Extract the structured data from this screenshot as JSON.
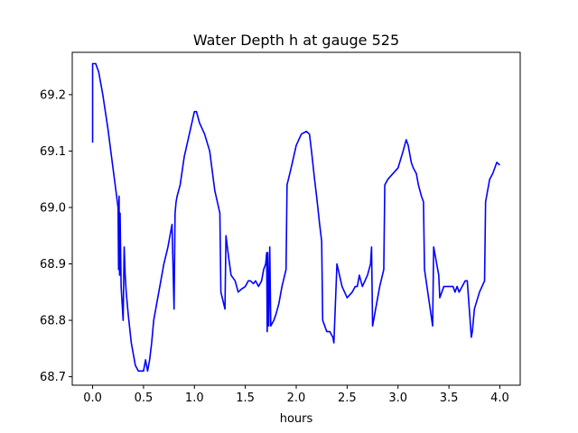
{
  "chart_data": {
    "type": "line",
    "title": "Water Depth h at gauge 525",
    "xlabel": "hours",
    "ylabel": "",
    "xlim": [
      -0.2,
      4.2
    ],
    "ylim": [
      68.685,
      69.275
    ],
    "xticks": [
      0.0,
      0.5,
      1.0,
      1.5,
      2.0,
      2.5,
      3.0,
      3.5,
      4.0
    ],
    "xtick_labels": [
      "0.0",
      "0.5",
      "1.0",
      "1.5",
      "2.0",
      "2.5",
      "3.0",
      "3.5",
      "4.0"
    ],
    "yticks": [
      68.7,
      68.8,
      68.9,
      69.0,
      69.1,
      69.2
    ],
    "ytick_labels": [
      "68.7",
      "68.8",
      "68.9",
      "69.0",
      "69.1",
      "69.2"
    ],
    "grid": false,
    "legend": "none",
    "series": [
      {
        "color": "#0000ff",
        "x": [
          0.0,
          0.0,
          0.03,
          0.06,
          0.1,
          0.15,
          0.2,
          0.25,
          0.255,
          0.26,
          0.265,
          0.27,
          0.28,
          0.3,
          0.31,
          0.32,
          0.33,
          0.35,
          0.38,
          0.4,
          0.42,
          0.45,
          0.48,
          0.5,
          0.52,
          0.54,
          0.55,
          0.56,
          0.58,
          0.6,
          0.63,
          0.66,
          0.7,
          0.74,
          0.78,
          0.8,
          0.81,
          0.815,
          0.82,
          0.83,
          0.86,
          0.9,
          0.95,
          1.0,
          1.02,
          1.05,
          1.1,
          1.15,
          1.2,
          1.25,
          1.26,
          1.3,
          1.31,
          1.33,
          1.36,
          1.4,
          1.43,
          1.46,
          1.5,
          1.53,
          1.55,
          1.58,
          1.6,
          1.63,
          1.66,
          1.68,
          1.7,
          1.71,
          1.715,
          1.72,
          1.73,
          1.74,
          1.75,
          1.78,
          1.8,
          1.83,
          1.86,
          1.9,
          1.91,
          1.95,
          2.0,
          2.05,
          2.1,
          2.13,
          2.15,
          2.18,
          2.2,
          2.23,
          2.25,
          2.26,
          2.3,
          2.33,
          2.36,
          2.37,
          2.4,
          2.45,
          2.5,
          2.55,
          2.58,
          2.6,
          2.62,
          2.65,
          2.7,
          2.73,
          2.74,
          2.75,
          2.78,
          2.82,
          2.86,
          2.87,
          2.9,
          2.95,
          3.0,
          3.05,
          3.08,
          3.1,
          3.13,
          3.15,
          3.18,
          3.2,
          3.23,
          3.25,
          3.26,
          3.3,
          3.34,
          3.35,
          3.36,
          3.38,
          3.4,
          3.41,
          3.45,
          3.5,
          3.54,
          3.56,
          3.58,
          3.6,
          3.63,
          3.66,
          3.68,
          3.72,
          3.73,
          3.75,
          3.8,
          3.85,
          3.86,
          3.88,
          3.9,
          3.93,
          3.95,
          3.97,
          4.0
        ],
        "y": [
          69.115,
          69.255,
          69.255,
          69.24,
          69.2,
          69.14,
          69.07,
          69.0,
          68.89,
          69.02,
          68.88,
          68.99,
          68.86,
          68.8,
          68.93,
          68.88,
          68.85,
          68.81,
          68.76,
          68.74,
          68.72,
          68.71,
          68.71,
          68.71,
          68.73,
          68.71,
          68.72,
          68.73,
          68.76,
          68.8,
          68.83,
          68.86,
          68.9,
          68.93,
          68.97,
          68.82,
          68.99,
          69.0,
          69.01,
          69.02,
          69.04,
          69.09,
          69.13,
          69.17,
          69.17,
          69.15,
          69.13,
          69.1,
          69.03,
          68.99,
          68.85,
          68.82,
          68.95,
          68.92,
          68.88,
          68.87,
          68.85,
          68.855,
          68.86,
          68.87,
          68.87,
          68.865,
          68.87,
          68.86,
          68.87,
          68.89,
          68.9,
          68.92,
          68.78,
          68.92,
          68.79,
          68.93,
          68.79,
          68.8,
          68.81,
          68.83,
          68.86,
          68.89,
          69.04,
          69.07,
          69.11,
          69.13,
          69.135,
          69.13,
          69.1,
          69.05,
          69.02,
          68.97,
          68.94,
          68.8,
          68.78,
          68.78,
          68.77,
          68.76,
          68.9,
          68.86,
          68.84,
          68.85,
          68.86,
          68.86,
          68.88,
          68.86,
          68.88,
          68.9,
          68.93,
          68.79,
          68.82,
          68.86,
          68.89,
          69.04,
          69.05,
          69.06,
          69.07,
          69.1,
          69.12,
          69.11,
          69.08,
          69.07,
          69.06,
          69.04,
          69.02,
          69.01,
          68.89,
          68.84,
          68.79,
          68.93,
          68.92,
          68.9,
          68.88,
          68.84,
          68.86,
          68.86,
          68.86,
          68.85,
          68.86,
          68.85,
          68.86,
          68.87,
          68.87,
          68.77,
          68.78,
          68.82,
          68.85,
          68.87,
          69.01,
          69.03,
          69.05,
          69.06,
          69.07,
          69.08,
          69.075
        ]
      }
    ]
  }
}
